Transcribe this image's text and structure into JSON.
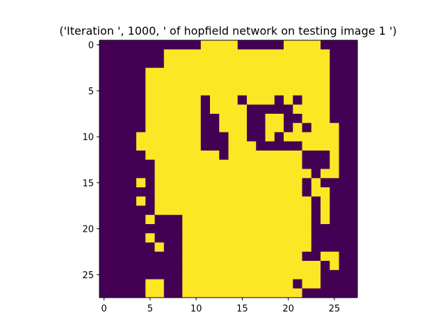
{
  "chart_data": {
    "type": "heatmap",
    "title": "('Iteration ', 1000, ' of hopfield network on testing image 1 ')",
    "xlabel": "",
    "ylabel": "",
    "xlim": [
      -0.5,
      27.5
    ],
    "ylim": [
      27.5,
      -0.5
    ],
    "x_ticks": [
      0,
      5,
      10,
      15,
      20,
      25
    ],
    "y_ticks": [
      0,
      5,
      10,
      15,
      20,
      25
    ],
    "grid": false,
    "colors": {
      "0": "#440154",
      "1": "#fde725"
    },
    "matrix": [
      "0000000000011110000011110000",
      "0000000111111111111111111000",
      "0000000111111111111111111000",
      "0000011111111111111111111000",
      "0000011111111111111111111000",
      "0000011111111111111111111000",
      "0000011111101110111010111000",
      "0000011111101111000001111000",
      "0000011111100111001100111000",
      "0000011111100111001101011100",
      "0000111111100011001011111100",
      "0000111111100011100000111100",
      "0000011111111011111111000100",
      "0000001111111111111111000100",
      "0000001111111111111111101100",
      "0000101111111111111111010000",
      "0000001111111111111111011000",
      "0000101111111111111111101000",
      "0000001111111111111111101000",
      "0000010001111111111111101000",
      "0000000001111111111111100000",
      "0000010001111111111111100000",
      "0000001001111111111111100000",
      "0000000001111111111111001100",
      "0000000001111111111111110100",
      "0000000001111111111111110000",
      "0000011001111111111110110000",
      "0000011001111111111111000000"
    ]
  }
}
